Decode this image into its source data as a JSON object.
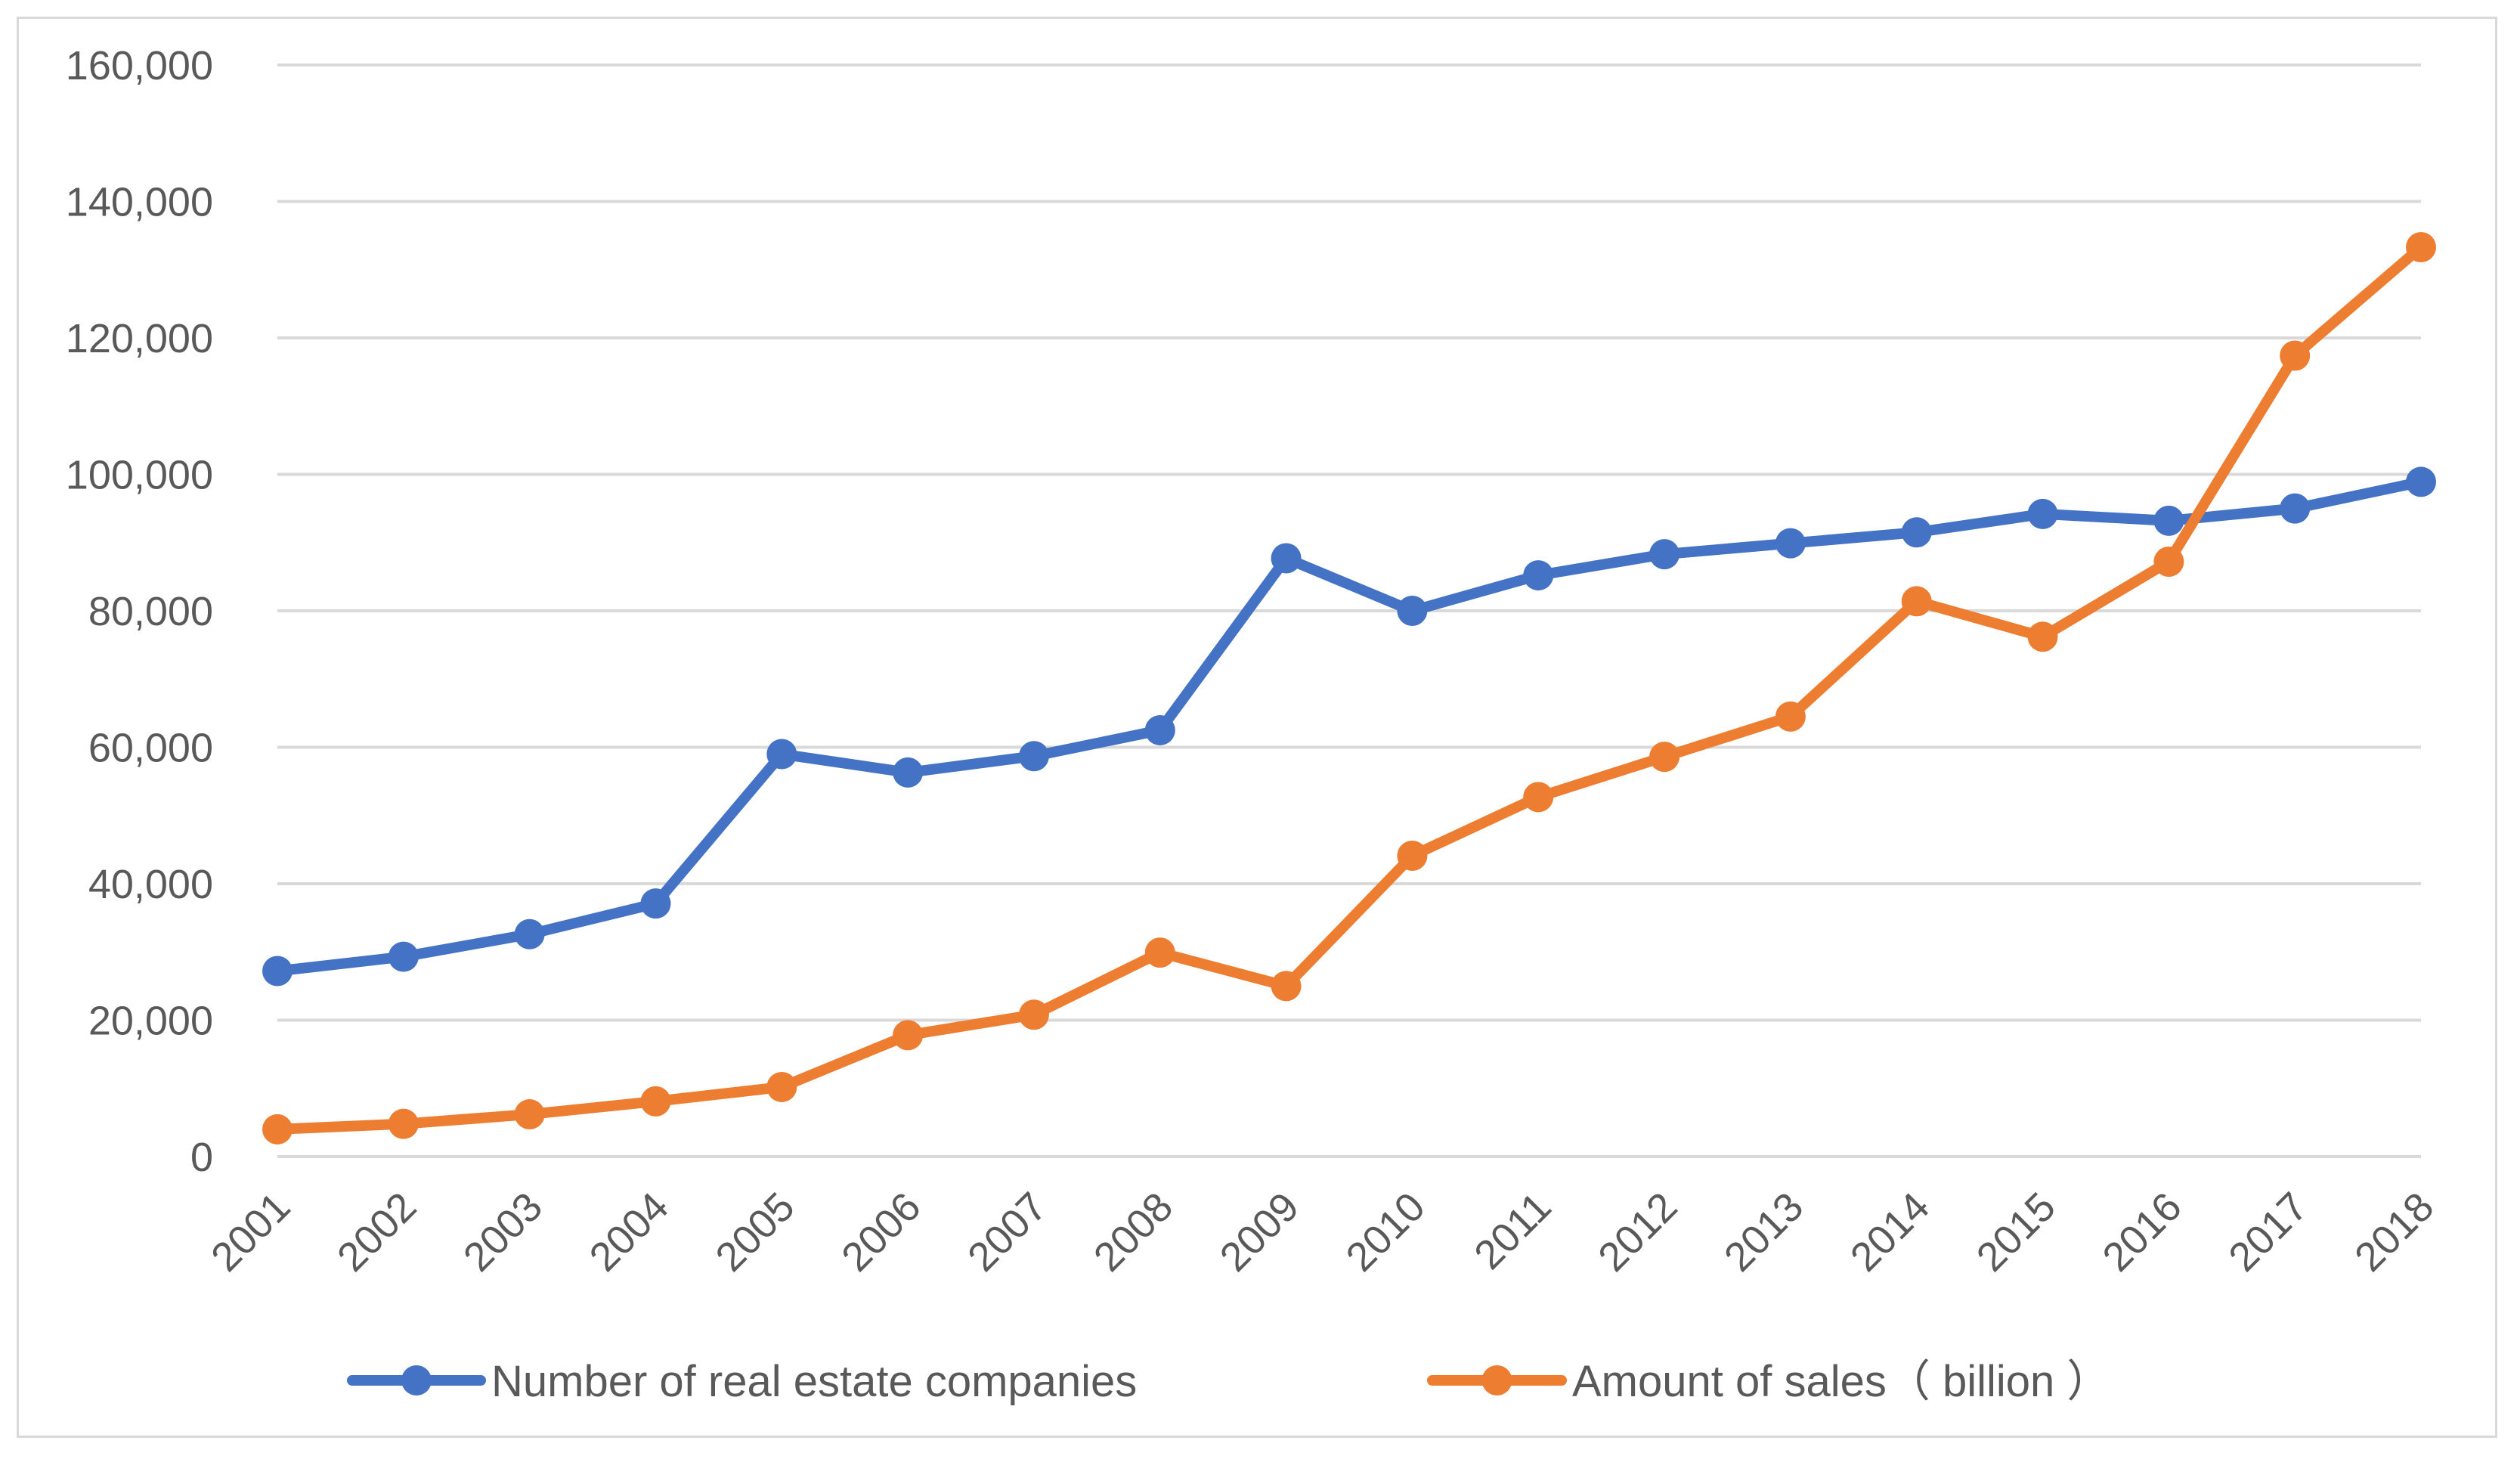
{
  "chart_data": {
    "type": "line",
    "title": "",
    "xlabel": "",
    "ylabel": "",
    "categories": [
      "2001",
      "2002",
      "2003",
      "2004",
      "2005",
      "2006",
      "2007",
      "2008",
      "2009",
      "2010",
      "2011",
      "2012",
      "2013",
      "2014",
      "2015",
      "2016",
      "2017",
      "2018"
    ],
    "ylim": [
      0,
      160000
    ],
    "yticks": [
      0,
      20000,
      40000,
      60000,
      80000,
      100000,
      120000,
      140000,
      160000
    ],
    "ytick_labels": [
      "0",
      "20,000",
      "40,000",
      "60,000",
      "80,000",
      "100,000",
      "120,000",
      "140,000",
      "160,000"
    ],
    "grid": "horizontal",
    "legend_position": "bottom",
    "series": [
      {
        "name": "Number of real estate companies",
        "color": "#4472c4",
        "marker": "circle",
        "values": [
          27200,
          29300,
          32600,
          37100,
          59000,
          56300,
          58700,
          62500,
          87700,
          80000,
          85200,
          88300,
          89900,
          91500,
          94200,
          93200,
          95000,
          98900
        ]
      },
      {
        "name": "Amount of sales（ billion ）",
        "color": "#ed7d31",
        "marker": "circle",
        "values": [
          4000,
          4800,
          6200,
          8100,
          10200,
          17800,
          20800,
          29900,
          25000,
          44100,
          52700,
          58600,
          64500,
          81400,
          76200,
          87200,
          117400,
          133300
        ]
      }
    ]
  }
}
